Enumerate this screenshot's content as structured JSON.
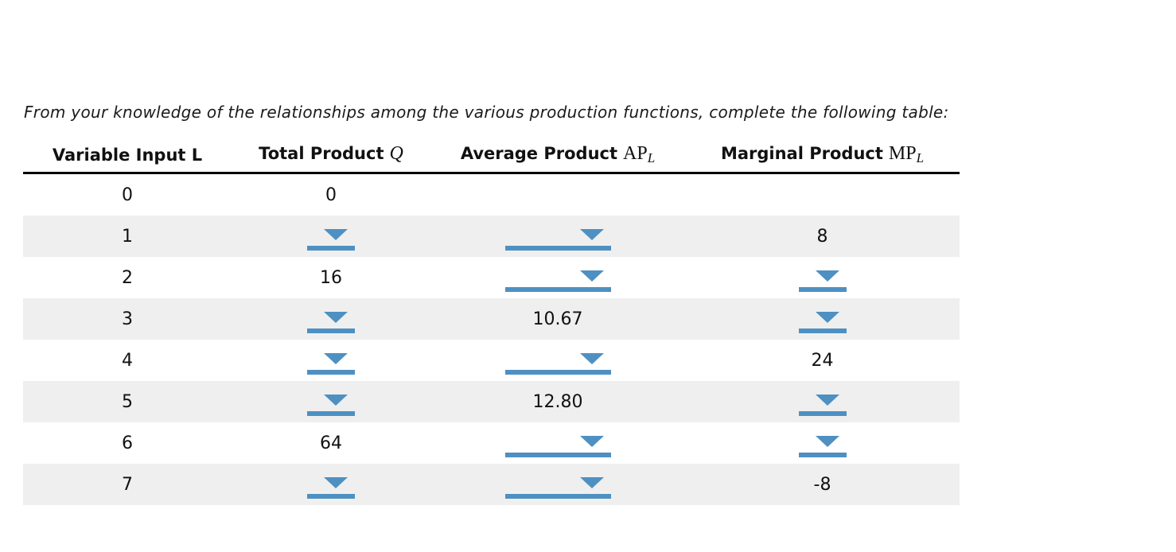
{
  "instruction": "From your knowledge of the relationships among the various production functions, complete the following table:",
  "table": {
    "columns": [
      {
        "label": "Variable Input L"
      },
      {
        "label": "Total Product",
        "math": "Q"
      },
      {
        "label": "Average Product",
        "math": "AP",
        "sub": "L"
      },
      {
        "label": "Marginal Product",
        "math": "MP",
        "sub": "L"
      }
    ],
    "rows": [
      {
        "l": "0",
        "tp": {
          "type": "text",
          "value": "0"
        },
        "ap": {
          "type": "empty"
        },
        "mp": {
          "type": "empty"
        }
      },
      {
        "l": "1",
        "tp": {
          "type": "dropdown"
        },
        "ap": {
          "type": "dropdown"
        },
        "mp": {
          "type": "text",
          "value": "8"
        }
      },
      {
        "l": "2",
        "tp": {
          "type": "text",
          "value": "16"
        },
        "ap": {
          "type": "dropdown"
        },
        "mp": {
          "type": "dropdown"
        }
      },
      {
        "l": "3",
        "tp": {
          "type": "dropdown"
        },
        "ap": {
          "type": "text",
          "value": "10.67"
        },
        "mp": {
          "type": "dropdown"
        }
      },
      {
        "l": "4",
        "tp": {
          "type": "dropdown"
        },
        "ap": {
          "type": "dropdown"
        },
        "mp": {
          "type": "text",
          "value": "24"
        }
      },
      {
        "l": "5",
        "tp": {
          "type": "dropdown"
        },
        "ap": {
          "type": "text",
          "value": "12.80"
        },
        "mp": {
          "type": "dropdown"
        }
      },
      {
        "l": "6",
        "tp": {
          "type": "text",
          "value": "64"
        },
        "ap": {
          "type": "dropdown"
        },
        "mp": {
          "type": "dropdown"
        }
      },
      {
        "l": "7",
        "tp": {
          "type": "dropdown"
        },
        "ap": {
          "type": "dropdown"
        },
        "mp": {
          "type": "text",
          "value": "-8"
        }
      }
    ]
  },
  "colors": {
    "accent_blue": "#4e90c2",
    "row_stripe": "#efefef",
    "header_border": "#000000"
  }
}
